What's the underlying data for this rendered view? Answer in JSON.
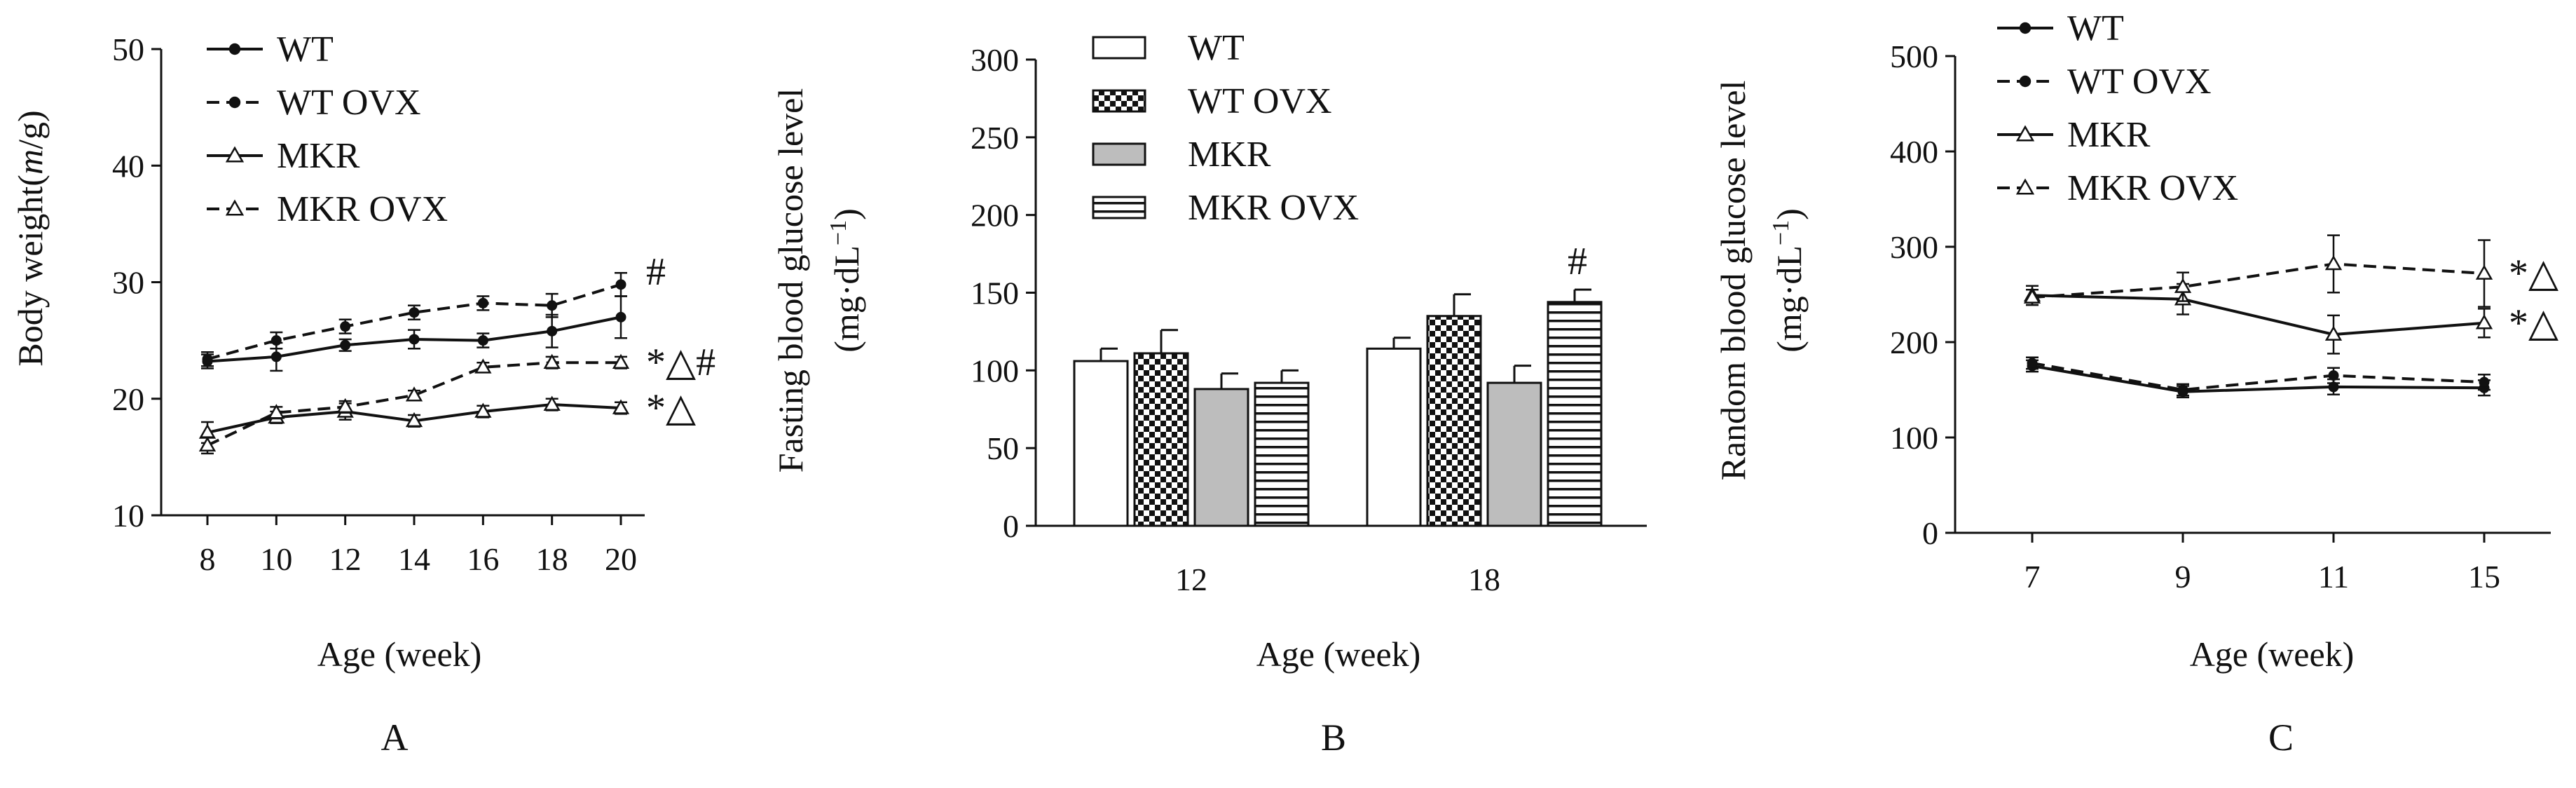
{
  "chart_data": [
    {
      "panel": "A",
      "type": "line",
      "xlabel": "Age (week)",
      "ylabel_parts": [
        "Body weight(",
        "m",
        "/g)"
      ],
      "x": [
        8,
        10,
        12,
        14,
        16,
        18,
        20
      ],
      "x_ticks": [
        "8",
        "10",
        "12",
        "14",
        "16",
        "18",
        "20"
      ],
      "ylim": [
        10,
        50
      ],
      "y_ticks": [
        "10",
        "20",
        "30",
        "40",
        "50"
      ],
      "grid": false,
      "legend_position": "top-left",
      "series": [
        {
          "name": "WT",
          "values": [
            23.2,
            23.6,
            24.6,
            25.1,
            25.0,
            25.8,
            27.0
          ],
          "error": [
            0.6,
            1.2,
            0.5,
            0.8,
            0.6,
            1.4,
            1.8
          ],
          "line": "solid",
          "marker": "filled-circle"
        },
        {
          "name": "WT OVX",
          "values": [
            23.4,
            25.0,
            26.2,
            27.4,
            28.2,
            28.0,
            29.8
          ],
          "error": [
            0.6,
            0.7,
            0.6,
            0.6,
            0.6,
            1.0,
            1.0
          ],
          "line": "dashed",
          "marker": "filled-circle"
        },
        {
          "name": "MKR",
          "values": [
            17.1,
            18.4,
            18.9,
            18.1,
            18.9,
            19.5,
            19.2
          ],
          "error": [
            0.9,
            0.5,
            0.7,
            0.5,
            0.5,
            0.5,
            0.5
          ],
          "line": "solid",
          "marker": "open-triangle"
        },
        {
          "name": "MKR OVX",
          "values": [
            16.0,
            18.8,
            19.3,
            20.3,
            22.7,
            23.1,
            23.1
          ],
          "error": [
            0.7,
            0.5,
            0.5,
            0.4,
            0.4,
            0.5,
            0.5
          ],
          "line": "dashed",
          "marker": "open-triangle"
        }
      ],
      "annotations": [
        {
          "text": "#",
          "series": "WT OVX"
        },
        {
          "text": "*△#",
          "series": "MKR OVX"
        },
        {
          "text": "*△",
          "series": "MKR"
        }
      ]
    },
    {
      "panel": "B",
      "type": "bar",
      "xlabel": "Age (week)",
      "ylabel_line1": "Fasting blood glucose level",
      "ylabel_line2": "(mg·dL",
      "ylabel_sup": "−1",
      "ylabel_close": ")",
      "categories": [
        "12",
        "18"
      ],
      "ylim": [
        0,
        300
      ],
      "y_ticks": [
        "0",
        "50",
        "100",
        "150",
        "200",
        "250",
        "300"
      ],
      "grid": false,
      "legend_position": "top-left",
      "series": [
        {
          "name": "WT",
          "values": [
            106,
            114
          ],
          "error": [
            8,
            7
          ],
          "fill": "white"
        },
        {
          "name": "WT OVX",
          "values": [
            111,
            135
          ],
          "error": [
            15,
            14
          ],
          "fill": "checker"
        },
        {
          "name": "MKR",
          "values": [
            88,
            92
          ],
          "error": [
            10,
            11
          ],
          "fill": "gray"
        },
        {
          "name": "MKR OVX",
          "values": [
            92,
            144
          ],
          "error": [
            8,
            8
          ],
          "fill": "hlines"
        }
      ],
      "annotations": [
        {
          "text": "#",
          "category": "18",
          "series": "MKR OVX"
        }
      ]
    },
    {
      "panel": "C",
      "type": "line",
      "xlabel": "Age (week)",
      "ylabel_line1": "Random blood glucose level",
      "ylabel_line2": "(mg·dL",
      "ylabel_sup": "−1",
      "ylabel_close": ")",
      "x": [
        7,
        9,
        11,
        15
      ],
      "x_ticks": [
        "7",
        "9",
        "11",
        "15"
      ],
      "ylim": [
        0,
        500
      ],
      "y_ticks": [
        "0",
        "100",
        "200",
        "300",
        "400",
        "500"
      ],
      "grid": false,
      "legend_position": "top-left",
      "series": [
        {
          "name": "WT",
          "values": [
            175,
            148,
            153,
            152
          ],
          "error": [
            6,
            6,
            8,
            8
          ],
          "line": "solid",
          "marker": "filled-circle"
        },
        {
          "name": "WT OVX",
          "values": [
            178,
            150,
            165,
            158
          ],
          "error": [
            6,
            6,
            8,
            8
          ],
          "line": "dashed",
          "marker": "filled-circle"
        },
        {
          "name": "MKR",
          "values": [
            249,
            245,
            208,
            220
          ],
          "error": [
            10,
            16,
            20,
            15
          ],
          "line": "solid",
          "marker": "open-triangle"
        },
        {
          "name": "MKR OVX",
          "values": [
            247,
            258,
            282,
            272
          ],
          "error": [
            8,
            15,
            30,
            35
          ],
          "line": "dashed",
          "marker": "open-triangle"
        }
      ],
      "annotations": [
        {
          "text": "*△",
          "series": "MKR OVX"
        },
        {
          "text": "*△",
          "series": "MKR"
        }
      ]
    }
  ]
}
